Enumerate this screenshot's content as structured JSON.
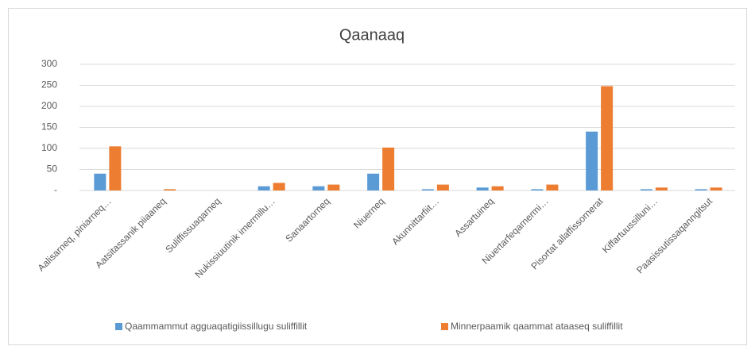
{
  "chart_data": {
    "type": "bar",
    "title": "Qaanaaq",
    "categories": [
      "Aalisarneq, piniarneq…",
      "Aatsitassanik piiaaneq",
      "Suliffissuaqarneq",
      "Nukissiuutinik imermillu…",
      "Sanaartorneq",
      "Niuerneq",
      "Akunnittarfiit…",
      "Assartuineq",
      "Niuertarfeqarnermi…",
      "Pisortat allaffissornerat",
      "Kiffartuussilluni…",
      "Paasissutissaqanngitsut"
    ],
    "series": [
      {
        "name": "Qaammammut agguaqatigiissillugu suliffillit",
        "color": "#5b9bd5",
        "values": [
          40,
          0,
          0,
          10,
          10,
          40,
          3,
          7,
          3,
          140,
          3,
          3
        ]
      },
      {
        "name": "Minnerpaamik qaammat ataaseq suliffillit",
        "color": "#ed7d31",
        "values": [
          105,
          3,
          0,
          18,
          14,
          102,
          14,
          10,
          14,
          248,
          7,
          7
        ]
      }
    ],
    "ylim": [
      0,
      300
    ],
    "yticks": [
      {
        "value": 0,
        "label": "-"
      },
      50,
      100,
      150,
      200,
      250,
      300
    ],
    "grid": true,
    "legend": "bottom"
  }
}
